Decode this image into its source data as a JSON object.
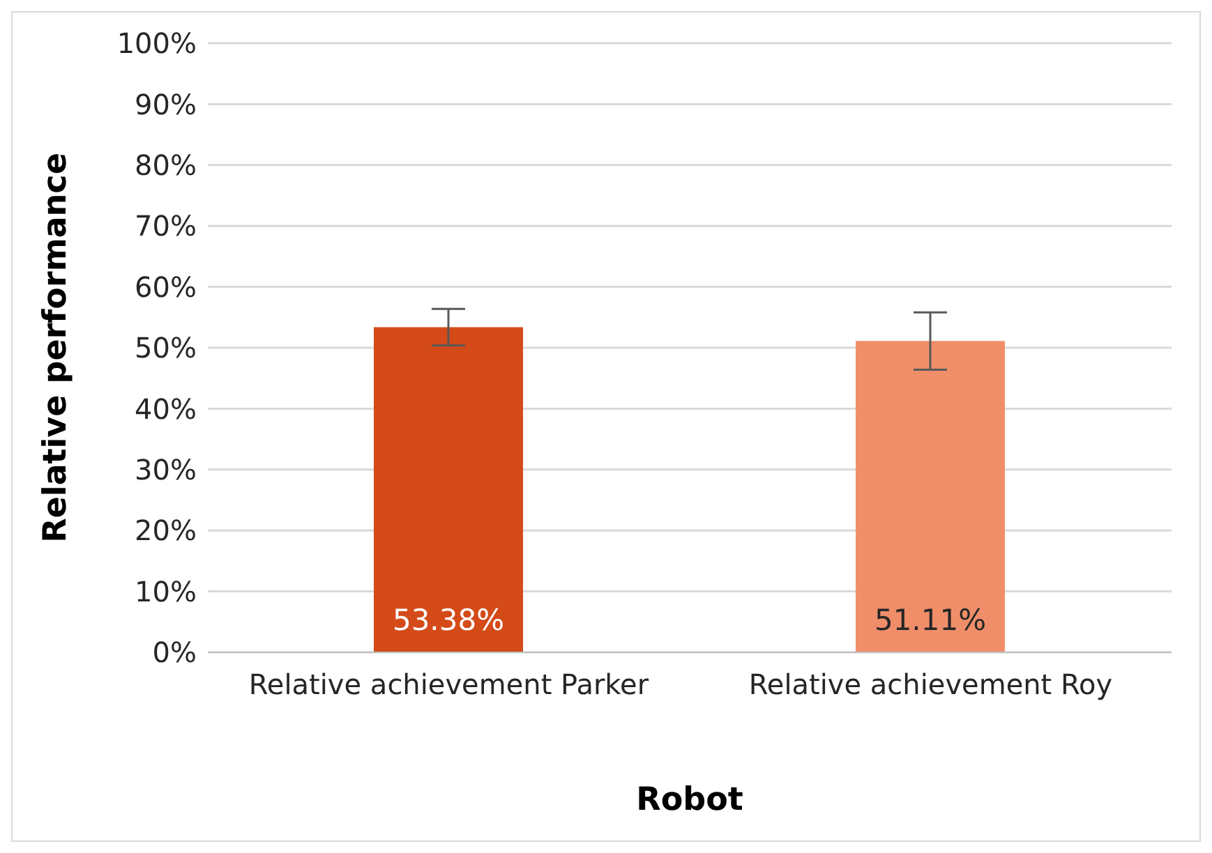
{
  "chart_data": {
    "type": "bar",
    "xlabel": "Robot",
    "ylabel": "Relative performance",
    "categories": [
      "Relative achievement Parker",
      "Relative achievement Roy"
    ],
    "values": [
      53.38,
      51.11
    ],
    "colors": [
      "#d44a18",
      "#f08e6a"
    ],
    "errors": [
      3,
      4.7
    ],
    "value_labels": [
      "53.38%",
      "51.11%"
    ],
    "ylim": [
      0,
      100
    ],
    "yticks": [
      {
        "value": 0,
        "label": "0%"
      },
      {
        "value": 10,
        "label": "10%"
      },
      {
        "value": 20,
        "label": "20%"
      },
      {
        "value": 30,
        "label": "30%"
      },
      {
        "value": 40,
        "label": "40%"
      },
      {
        "value": 50,
        "label": "50%"
      },
      {
        "value": 60,
        "label": "60%"
      },
      {
        "value": 70,
        "label": "70%"
      },
      {
        "value": 80,
        "label": "80%"
      },
      {
        "value": 90,
        "label": "90%"
      },
      {
        "value": 100,
        "label": "100%"
      }
    ],
    "grid": "y",
    "legend": false
  }
}
